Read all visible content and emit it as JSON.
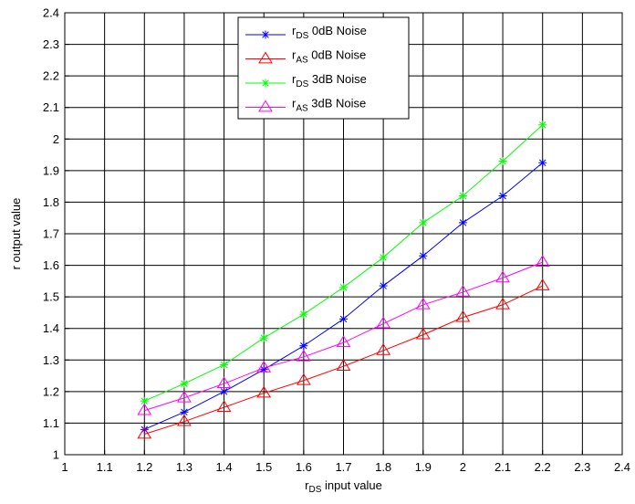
{
  "chart_data": {
    "type": "line",
    "title": "",
    "xlabel": {
      "main": "r",
      "sub": "DS",
      "rest": " input value"
    },
    "ylabel": "r output value",
    "xlim": [
      1,
      2.4
    ],
    "ylim": [
      1,
      2.4
    ],
    "xticks": [
      "1",
      "1.1",
      "1.2",
      "1.3",
      "1.4",
      "1.5",
      "1.6",
      "1.7",
      "1.8",
      "1.9",
      "2",
      "2.1",
      "2.2",
      "2.3",
      "2.4"
    ],
    "yticks": [
      "1",
      "1.1",
      "1.2",
      "1.3",
      "1.4",
      "1.5",
      "1.6",
      "1.7",
      "1.8",
      "1.9",
      "2",
      "2.1",
      "2.2",
      "2.3",
      "2.4"
    ],
    "grid": true,
    "legend_position": "top-center",
    "x": [
      1.2,
      1.3,
      1.4,
      1.5,
      1.6,
      1.7,
      1.8,
      1.9,
      2.0,
      2.1,
      2.2
    ],
    "series": [
      {
        "label": {
          "main": "r",
          "sub": "DS",
          "rest": " 0dB Noise"
        },
        "color": "#0000ff",
        "marker": "asterisk",
        "values": [
          1.08,
          1.135,
          1.2,
          1.27,
          1.345,
          1.43,
          1.535,
          1.63,
          1.735,
          1.82,
          1.925
        ]
      },
      {
        "label": {
          "main": "r",
          "sub": "AS",
          "rest": " 0dB Noise"
        },
        "color": "#ff0000",
        "marker": "triangle",
        "values": [
          1.065,
          1.105,
          1.15,
          1.195,
          1.235,
          1.28,
          1.33,
          1.38,
          1.435,
          1.475,
          1.535
        ]
      },
      {
        "label": {
          "main": "r",
          "sub": "DS",
          "rest": " 3dB Noise"
        },
        "color": "#00ff00",
        "marker": "asterisk",
        "values": [
          1.17,
          1.225,
          1.285,
          1.37,
          1.445,
          1.53,
          1.625,
          1.735,
          1.82,
          1.93,
          2.045
        ]
      },
      {
        "label": {
          "main": "r",
          "sub": "AS",
          "rest": " 3dB Noise"
        },
        "color": "#ff00ff",
        "marker": "triangle",
        "values": [
          1.14,
          1.18,
          1.225,
          1.275,
          1.31,
          1.355,
          1.415,
          1.475,
          1.515,
          1.56,
          1.61
        ]
      }
    ]
  }
}
